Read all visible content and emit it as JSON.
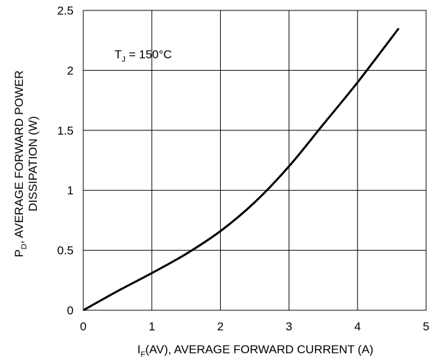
{
  "chart_data": {
    "type": "line",
    "xlabel": {
      "main": "I",
      "sub": "F",
      "rest": "(AV), AVERAGE FORWARD CURRENT (A)"
    },
    "ylabel": {
      "line1_main": "P",
      "line1_sub": "D",
      "line1_rest": ", AVERAGE FORWARD POWER",
      "line2": "DISSIPATION (W)"
    },
    "annotation": {
      "main": "T",
      "sub": "J",
      "rest": " = 150°C"
    },
    "xlim": [
      0,
      5
    ],
    "ylim": [
      0,
      2.5
    ],
    "xticks": [
      0,
      1,
      2,
      3,
      4,
      5
    ],
    "xtick_labels": [
      "0",
      "1",
      "2",
      "3",
      "4",
      "5"
    ],
    "yticks": [
      0,
      0.5,
      1,
      1.5,
      2,
      2.5
    ],
    "ytick_labels": [
      "0",
      "0.5",
      "1",
      "1.5",
      "2",
      "2.5"
    ],
    "grid": true,
    "series": [
      {
        "color": "#000000",
        "x": [
          0,
          0.5,
          1.0,
          1.5,
          2.0,
          2.5,
          3.0,
          3.5,
          4.0,
          4.6
        ],
        "y": [
          0,
          0.16,
          0.31,
          0.47,
          0.66,
          0.9,
          1.2,
          1.55,
          1.9,
          2.35
        ]
      }
    ]
  }
}
